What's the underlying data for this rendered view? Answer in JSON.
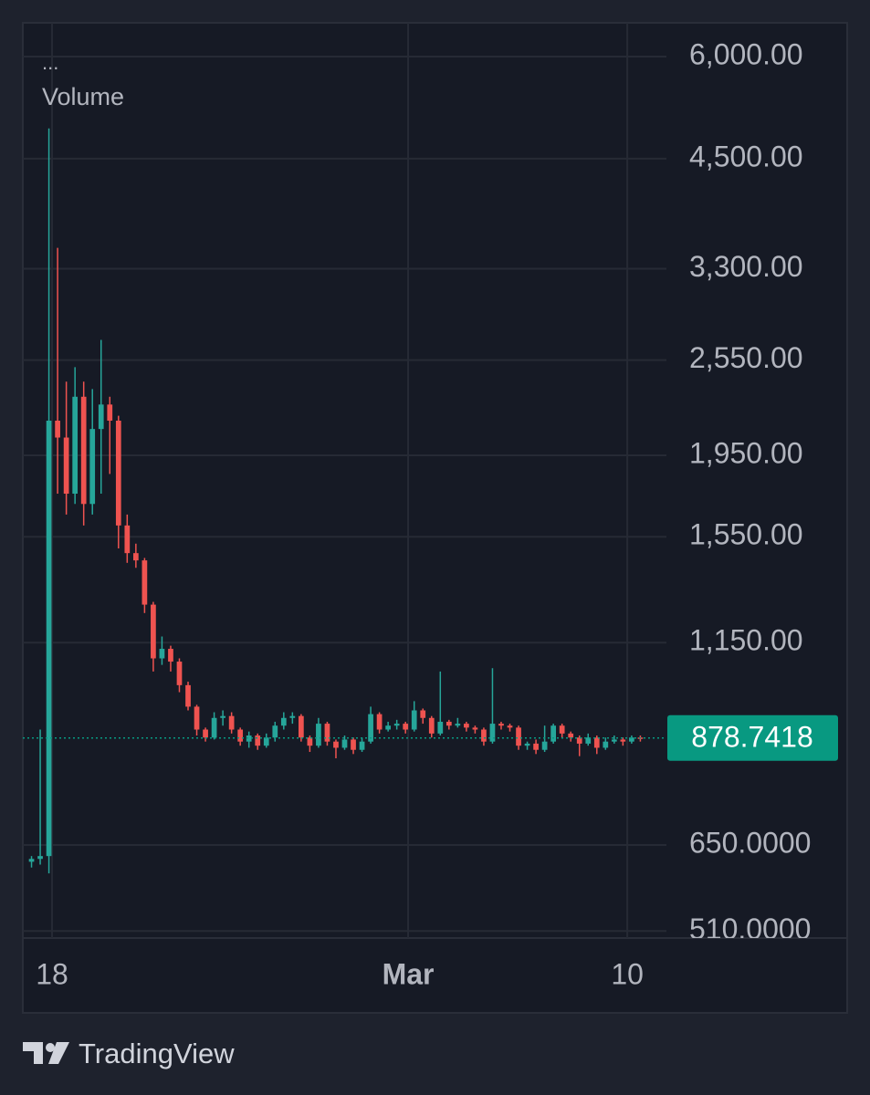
{
  "chart_data": {
    "type": "candlestick",
    "menu": "...",
    "indicator": "Volume",
    "log": true,
    "grid": true,
    "up_color": "#26a69a",
    "down_color": "#ef5350",
    "open": [
      620,
      625,
      630,
      2150,
      2050,
      1750,
      2300,
      1700,
      2100,
      2250,
      2150,
      1600,
      1480,
      1450,
      1280,
      1100,
      1130,
      1090,
      1020,
      960,
      900,
      880,
      930,
      935,
      900,
      870,
      885,
      860,
      880,
      910,
      930,
      935,
      880,
      860,
      915,
      870,
      855,
      875,
      850,
      870,
      940,
      900,
      910,
      915,
      900,
      950,
      930,
      890,
      920,
      910,
      915,
      905,
      900,
      870,
      915,
      910,
      905,
      860,
      865,
      850,
      870,
      910,
      890,
      880,
      865,
      880,
      855,
      870,
      875,
      870,
      880
    ],
    "high": [
      630,
      900,
      4900,
      3500,
      2400,
      2500,
      2400,
      2350,
      2700,
      2300,
      2180,
      1650,
      1520,
      1460,
      1290,
      1170,
      1140,
      1100,
      1030,
      965,
      905,
      945,
      950,
      945,
      905,
      895,
      890,
      890,
      920,
      945,
      945,
      940,
      885,
      930,
      920,
      875,
      885,
      880,
      880,
      960,
      945,
      920,
      925,
      920,
      975,
      955,
      935,
      1060,
      925,
      930,
      920,
      910,
      905,
      1070,
      920,
      915,
      910,
      870,
      875,
      910,
      915,
      915,
      895,
      885,
      890,
      885,
      880,
      885,
      880,
      885,
      885
    ],
    "low": [
      610,
      615,
      600,
      1750,
      1650,
      1700,
      1600,
      1650,
      1750,
      1850,
      1500,
      1440,
      1420,
      1250,
      1060,
      1080,
      1060,
      1000,
      950,
      885,
      870,
      875,
      910,
      890,
      860,
      855,
      850,
      855,
      870,
      900,
      915,
      870,
      845,
      855,
      860,
      830,
      850,
      840,
      845,
      865,
      890,
      895,
      900,
      890,
      895,
      915,
      880,
      885,
      900,
      905,
      895,
      890,
      860,
      865,
      900,
      895,
      850,
      850,
      840,
      845,
      865,
      880,
      870,
      835,
      860,
      840,
      850,
      865,
      860,
      865,
      870
    ],
    "close": [
      625,
      630,
      2150,
      2050,
      1750,
      2300,
      1700,
      2100,
      2250,
      2150,
      1600,
      1480,
      1450,
      1280,
      1100,
      1130,
      1090,
      1020,
      960,
      900,
      880,
      930,
      935,
      900,
      870,
      885,
      860,
      880,
      910,
      930,
      935,
      880,
      860,
      915,
      870,
      855,
      875,
      850,
      870,
      940,
      900,
      910,
      915,
      900,
      950,
      930,
      890,
      920,
      910,
      915,
      905,
      900,
      870,
      915,
      910,
      905,
      860,
      865,
      850,
      870,
      910,
      890,
      880,
      865,
      880,
      855,
      870,
      875,
      870,
      880,
      878.7418
    ],
    "xlim": [
      -1,
      73
    ],
    "xticks": [
      {
        "value": 2.36,
        "label": "18"
      },
      {
        "value": 43.3,
        "label": "Mar"
      },
      {
        "value": 68.5,
        "label": "10"
      }
    ],
    "ylim": [
      500,
      6600
    ],
    "yticks": [
      {
        "value": 6000,
        "label": "6,000.00"
      },
      {
        "value": 4500,
        "label": "4,500.00"
      },
      {
        "value": 3300,
        "label": "3,300.00"
      },
      {
        "value": 2550,
        "label": "2,550.00"
      },
      {
        "value": 1950,
        "label": "1,950.00"
      },
      {
        "value": 1550,
        "label": "1,550.00"
      },
      {
        "value": 1150,
        "label": "1,150.00"
      },
      {
        "value": 650,
        "label": "650.0000"
      },
      {
        "value": 510,
        "label": "510.0000"
      }
    ],
    "last_price": 878.7418,
    "last_price_color": "#089981"
  },
  "footer": {
    "brand": "TradingView"
  }
}
